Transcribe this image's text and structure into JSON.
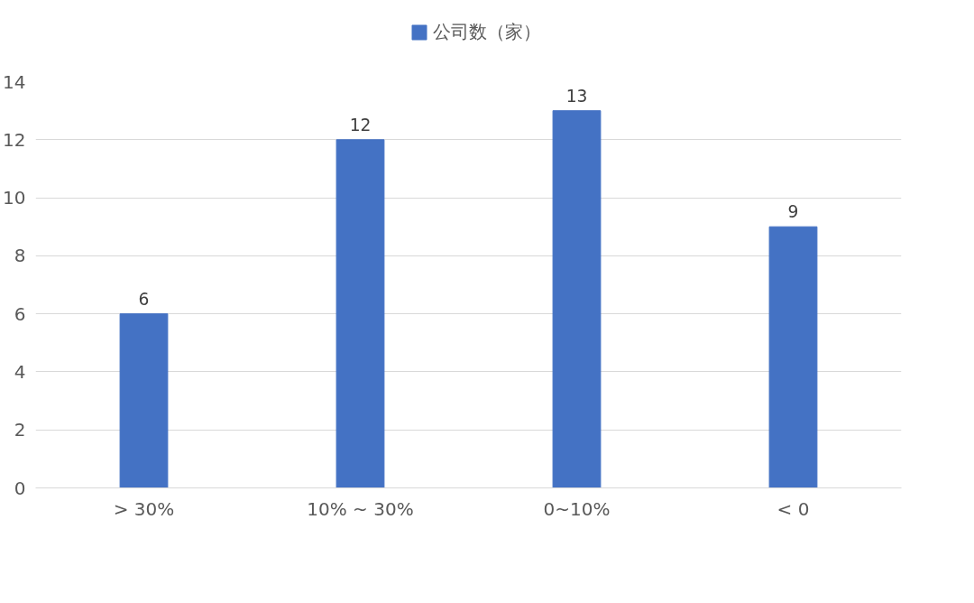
{
  "chart_data": {
    "type": "bar",
    "categories": [
      "> 30%",
      "10% ~ 30%",
      "0~10%",
      "< 0"
    ],
    "series": [
      {
        "name": "公司数（家）",
        "color": "#4472c4",
        "values": [
          6,
          12,
          13,
          9
        ]
      }
    ],
    "ylim": [
      0,
      14
    ],
    "yticks": [
      0,
      2,
      4,
      6,
      8,
      10,
      12,
      14
    ],
    "grid": "y",
    "legend": "top",
    "data_labels": true
  }
}
